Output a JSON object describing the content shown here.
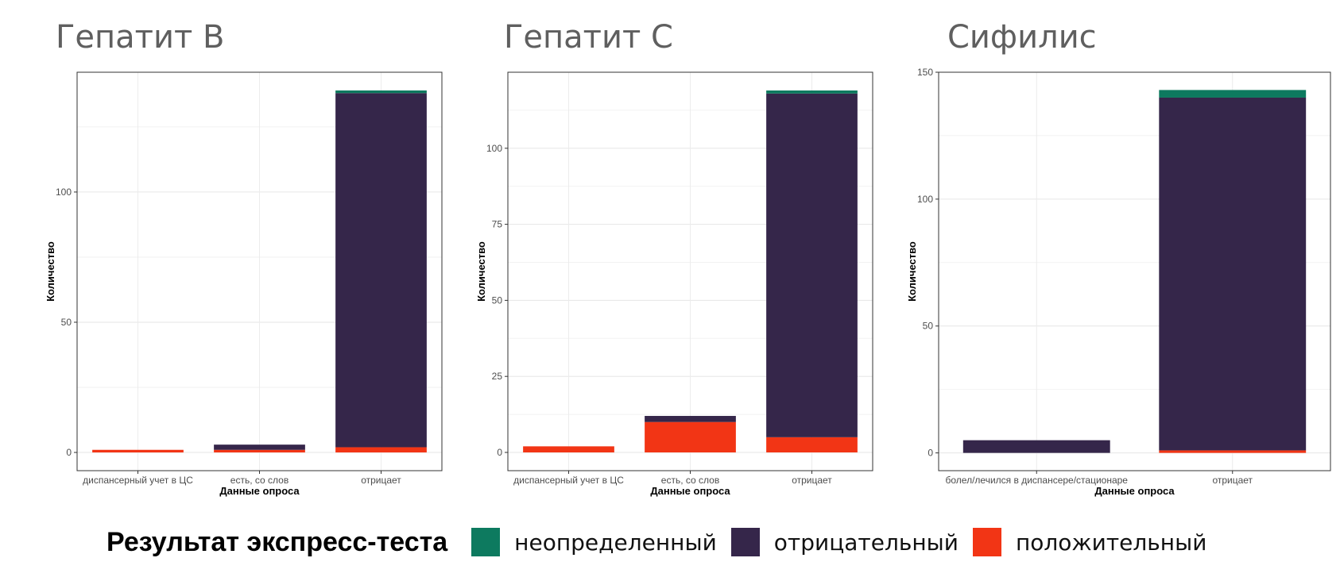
{
  "legend": {
    "title": "Результат экспресс-теста",
    "items": [
      {
        "label": "неопределенный",
        "color": "#0d7a5f"
      },
      {
        "label": "отрицательный",
        "color": "#35264a"
      },
      {
        "label": "положительный",
        "color": "#f23515"
      }
    ]
  },
  "chart_data": [
    {
      "type": "bar",
      "stacked": true,
      "title": "Гепатит B",
      "xlabel": "Данные опроса",
      "ylabel": "Количество",
      "categories": [
        "диспансерный учет в ЦС",
        "есть, со слов",
        "отрицает"
      ],
      "ylim": [
        -7,
        146
      ],
      "yticks": [
        0,
        50,
        100
      ],
      "grid": true,
      "series": [
        {
          "name": "положительный",
          "color": "#f23515",
          "values": [
            1,
            1,
            2
          ]
        },
        {
          "name": "отрицательный",
          "color": "#35264a",
          "values": [
            0,
            2,
            136
          ]
        },
        {
          "name": "неопределенный",
          "color": "#0d7a5f",
          "values": [
            0,
            0,
            1
          ]
        }
      ]
    },
    {
      "type": "bar",
      "stacked": true,
      "title": "Гепатит C",
      "xlabel": "Данные опроса",
      "ylabel": "Количество",
      "categories": [
        "диспансерный учет в ЦС",
        "есть, со слов",
        "отрицает"
      ],
      "ylim": [
        -6,
        125
      ],
      "yticks": [
        0,
        25,
        50,
        75,
        100
      ],
      "grid": true,
      "series": [
        {
          "name": "положительный",
          "color": "#f23515",
          "values": [
            2,
            10,
            5
          ]
        },
        {
          "name": "отрицательный",
          "color": "#35264a",
          "values": [
            0,
            2,
            113
          ]
        },
        {
          "name": "неопределенный",
          "color": "#0d7a5f",
          "values": [
            0,
            0,
            1
          ]
        }
      ]
    },
    {
      "type": "bar",
      "stacked": true,
      "title": "Сифилис",
      "xlabel": "Данные опроса",
      "ylabel": "Количество",
      "categories": [
        "болел/лечился в диспансере/стационаре",
        "отрицает"
      ],
      "ylim": [
        -7,
        150
      ],
      "yticks": [
        0,
        50,
        100,
        150
      ],
      "grid": true,
      "series": [
        {
          "name": "положительный",
          "color": "#f23515",
          "values": [
            0,
            1
          ]
        },
        {
          "name": "отрицательный",
          "color": "#35264a",
          "values": [
            5,
            139
          ]
        },
        {
          "name": "неопределенный",
          "color": "#0d7a5f",
          "values": [
            0,
            3
          ]
        }
      ]
    }
  ]
}
